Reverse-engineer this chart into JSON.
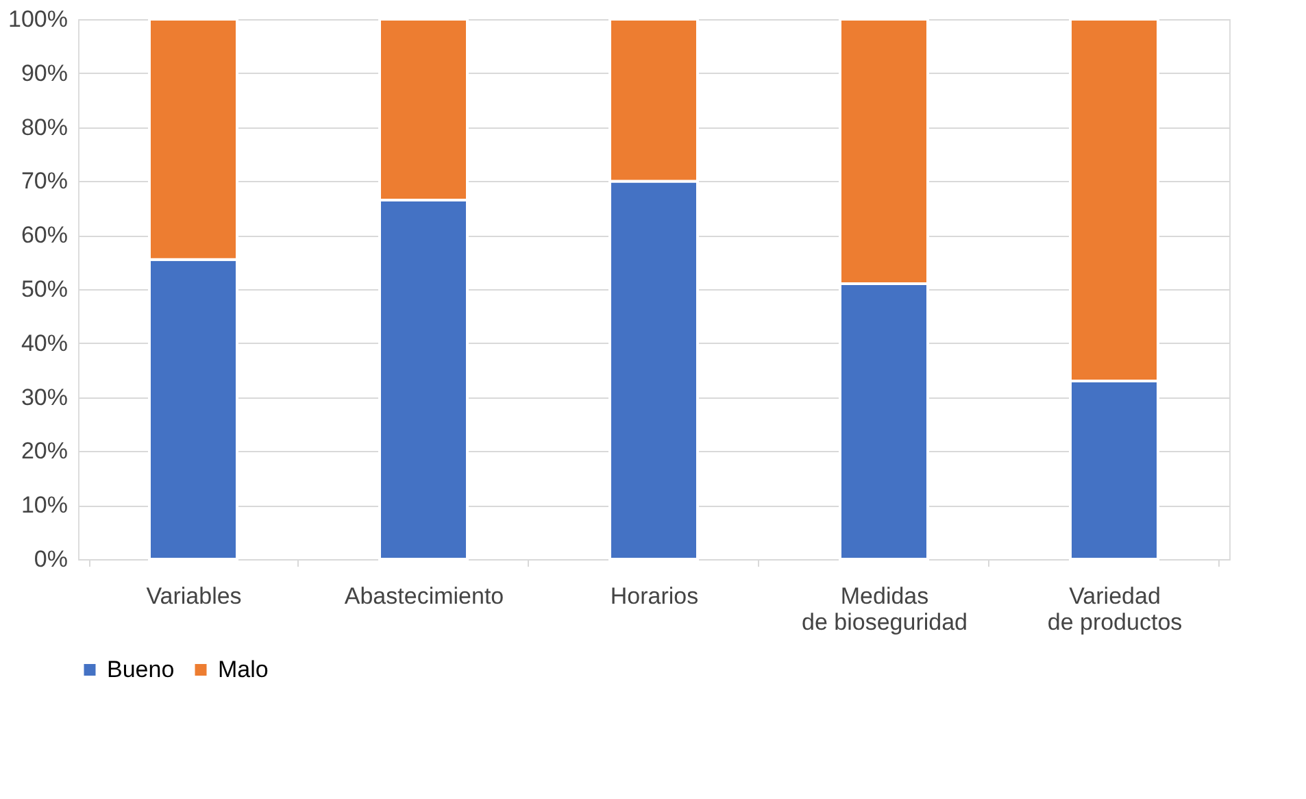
{
  "chart_data": {
    "type": "bar",
    "stacked": true,
    "categories": [
      "Variables",
      "Abastecimiento",
      "Horarios",
      "Medidas de bioseguridad",
      "Variedad de productos"
    ],
    "series": [
      {
        "name": "Bueno",
        "color": "#4472c4",
        "values": [
          55.5,
          66.5,
          70,
          51,
          33
        ]
      },
      {
        "name": "Malo",
        "color": "#ed7d31",
        "values": [
          44.5,
          33.5,
          30,
          49,
          67
        ]
      }
    ],
    "ylim": [
      0,
      100
    ],
    "yticks": [
      {
        "value": 0,
        "label": "0%"
      },
      {
        "value": 10,
        "label": "10%"
      },
      {
        "value": 20,
        "label": "20%"
      },
      {
        "value": 30,
        "label": "30%"
      },
      {
        "value": 40,
        "label": "40%"
      },
      {
        "value": 50,
        "label": "50%"
      },
      {
        "value": 60,
        "label": "60%"
      },
      {
        "value": 70,
        "label": "70%"
      },
      {
        "value": 80,
        "label": "80%"
      },
      {
        "value": 90,
        "label": "90%"
      },
      {
        "value": 100,
        "label": "100%"
      }
    ],
    "grid": "y",
    "legend": "bottom"
  }
}
